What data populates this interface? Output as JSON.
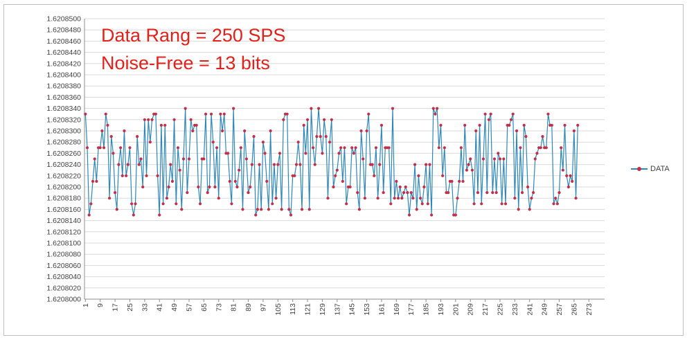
{
  "chart_data": {
    "type": "line",
    "title": "",
    "xlabel": "",
    "ylabel": "",
    "ylim": [
      1.6208,
      1.62085
    ],
    "y_tick_step": 2e-06,
    "x_tick_labels": [
      "1",
      "9",
      "17",
      "25",
      "33",
      "41",
      "49",
      "57",
      "65",
      "73",
      "81",
      "89",
      "97",
      "105",
      "113",
      "121",
      "129",
      "137",
      "145",
      "153",
      "161",
      "169",
      "177",
      "185",
      "193",
      "201",
      "209",
      "217",
      "225",
      "233",
      "241",
      "249",
      "257",
      "265",
      "273"
    ],
    "annotations": [
      "Data Rang = 250 SPS",
      "Noise-Free = 13 bits"
    ],
    "legend_position": "right",
    "grid": true,
    "series": [
      {
        "name": "DATA",
        "line_color": "#2e86b8",
        "marker_color": "#c0304a",
        "x_start": 1,
        "values": [
          1.620833,
          1.620827,
          1.620815,
          1.620817,
          1.620821,
          1.620825,
          1.620821,
          1.620827,
          1.620827,
          1.62083,
          1.620827,
          1.620833,
          1.620831,
          1.620818,
          1.620829,
          1.620826,
          1.620819,
          1.620816,
          1.620824,
          1.620827,
          1.620822,
          1.62083,
          1.620822,
          1.620824,
          1.620827,
          1.620817,
          1.620815,
          1.620817,
          1.620829,
          1.620824,
          1.620825,
          1.62082,
          1.620832,
          1.620822,
          1.620832,
          1.620828,
          1.620832,
          1.620833,
          1.620833,
          1.620822,
          1.620815,
          1.620831,
          1.620817,
          1.620831,
          1.620818,
          1.62082,
          1.620824,
          1.620821,
          1.620832,
          1.620817,
          1.620827,
          1.620823,
          1.620816,
          1.620825,
          1.620834,
          1.620819,
          1.620825,
          1.620832,
          1.62083,
          1.620831,
          1.620831,
          1.62082,
          1.620817,
          1.620825,
          1.620825,
          1.620833,
          1.620819,
          1.62082,
          1.620833,
          1.620828,
          1.62082,
          1.620827,
          1.620818,
          1.620833,
          1.62083,
          1.620833,
          1.620826,
          1.620826,
          1.620821,
          1.620817,
          1.620834,
          1.620821,
          1.62082,
          1.620823,
          1.620827,
          1.620816,
          1.62083,
          1.620825,
          1.620819,
          1.62082,
          1.620824,
          1.620829,
          1.620815,
          1.620816,
          1.620824,
          1.620816,
          1.620828,
          1.620826,
          1.620821,
          1.620816,
          1.62083,
          1.620817,
          1.620824,
          1.620818,
          1.620824,
          1.620826,
          1.620816,
          1.620832,
          1.620833,
          1.620833,
          1.620816,
          1.620815,
          1.620822,
          1.620822,
          1.620824,
          1.620828,
          1.620824,
          1.620816,
          1.620831,
          1.620826,
          1.620832,
          1.620816,
          1.620834,
          1.620827,
          1.620824,
          1.620829,
          1.620834,
          1.620829,
          1.620826,
          1.620832,
          1.620829,
          1.620818,
          1.620828,
          1.620832,
          1.62082,
          1.620822,
          1.620823,
          1.620826,
          1.620827,
          1.620821,
          1.620827,
          1.620817,
          1.62082,
          1.62082,
          1.620827,
          1.620826,
          1.620827,
          1.620819,
          1.620816,
          1.62083,
          1.620825,
          1.620818,
          1.62083,
          1.620833,
          1.620824,
          1.620824,
          1.620822,
          1.620827,
          1.620818,
          1.620824,
          1.620831,
          1.620819,
          1.620827,
          1.620827,
          1.620827,
          1.620817,
          1.620834,
          1.620818,
          1.620821,
          1.620818,
          1.62082,
          1.620818,
          1.620819,
          1.62082,
          1.620819,
          1.620815,
          1.620819,
          1.620818,
          1.620824,
          1.620816,
          1.620822,
          1.620818,
          1.620817,
          1.62082,
          1.620824,
          1.620817,
          1.620824,
          1.620815,
          1.620834,
          1.620833,
          1.620834,
          1.620827,
          1.620831,
          1.620822,
          1.620827,
          1.620819,
          1.620819,
          1.620821,
          1.620821,
          1.620815,
          1.620815,
          1.620818,
          1.620821,
          1.620827,
          1.620821,
          1.620831,
          1.620823,
          1.620824,
          1.620825,
          1.620823,
          1.620817,
          1.62083,
          1.620819,
          1.620831,
          1.620817,
          1.620825,
          1.620833,
          1.620819,
          1.620832,
          1.620833,
          1.620819,
          1.620825,
          1.620819,
          1.620826,
          1.620825,
          1.620817,
          1.620825,
          1.620817,
          1.620831,
          1.620831,
          1.620832,
          1.620833,
          1.620818,
          1.62083,
          1.620816,
          1.620827,
          1.620819,
          1.620831,
          1.620829,
          1.62082,
          1.620816,
          1.620818,
          1.620819,
          1.620825,
          1.620826,
          1.620827,
          1.620827,
          1.620829,
          1.620827,
          1.620827,
          1.620833,
          1.620831,
          1.620831,
          1.620817,
          1.620818,
          1.620817,
          1.620819,
          1.620827,
          1.620823,
          1.620831,
          1.620822,
          1.62082,
          1.620822,
          1.620821,
          1.62083,
          1.620818,
          1.620831
        ]
      }
    ]
  }
}
